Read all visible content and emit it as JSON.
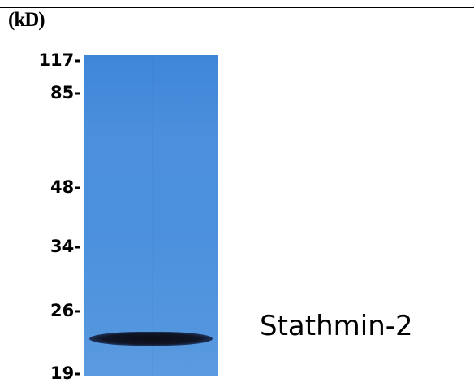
{
  "unit_label": "(kD)",
  "markers": [
    "117-",
    "85-",
    "48-",
    "34-",
    "26-",
    "19-"
  ],
  "protein_label": "Stathmin-2",
  "colors": {
    "lane": "#4b8fdd",
    "band": "#101525",
    "text": "#000000"
  }
}
